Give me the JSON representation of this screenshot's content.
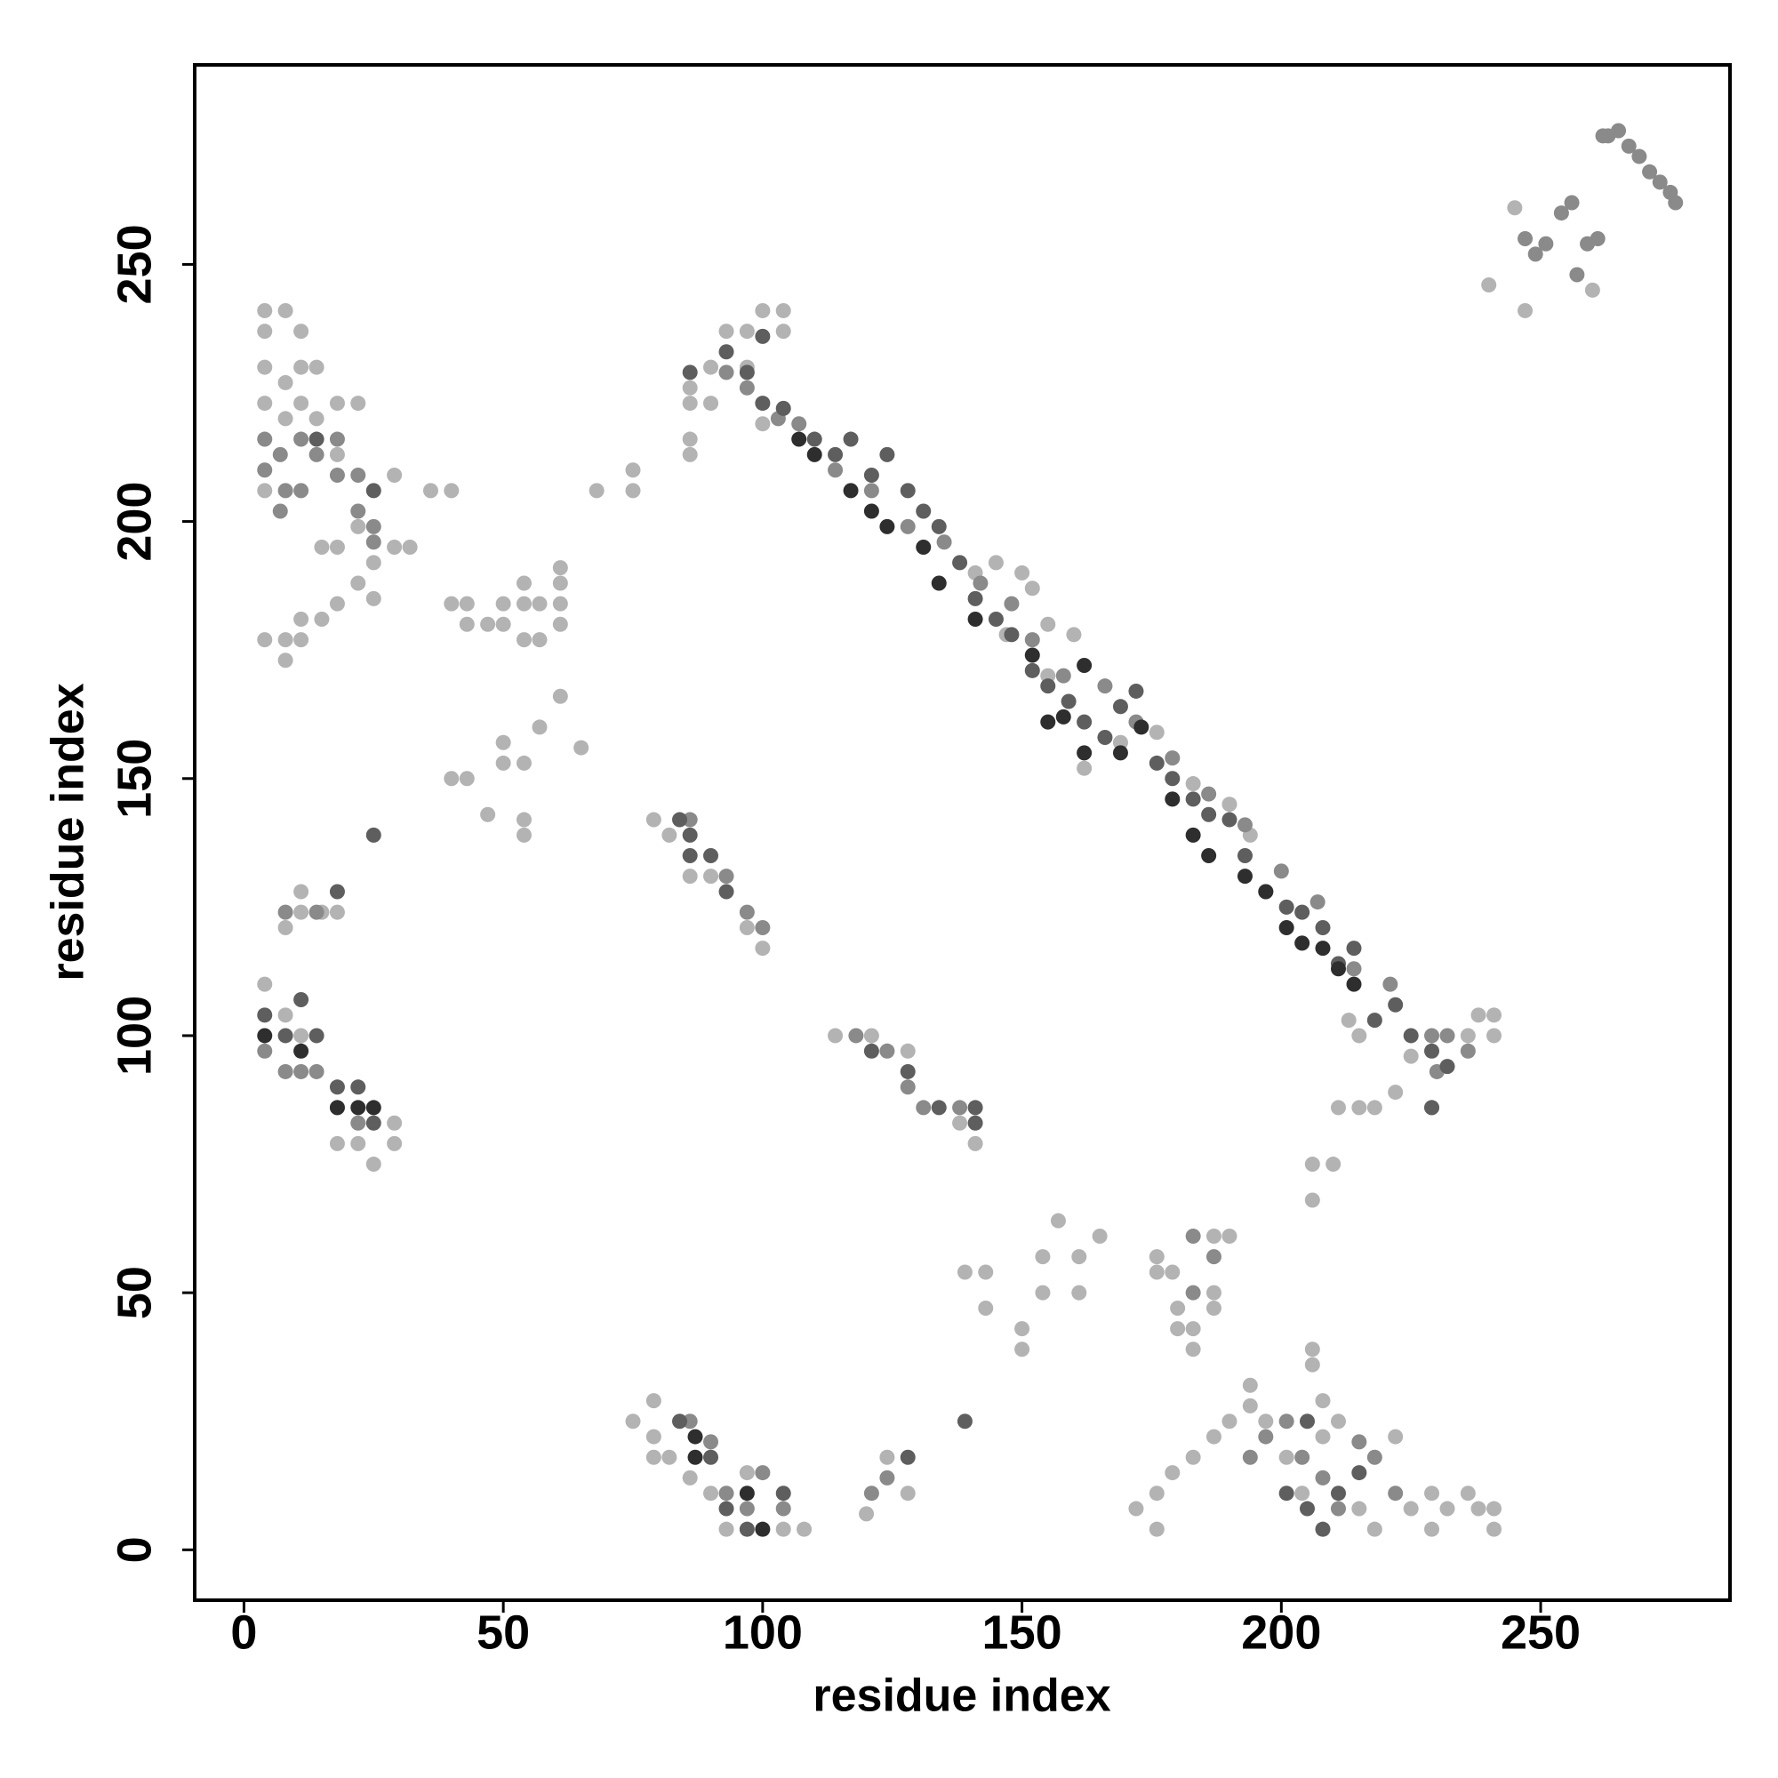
{
  "chart_data": {
    "type": "scatter",
    "xlabel": "residue index",
    "ylabel": "residue index",
    "xlim": [
      -9.5,
      286.5
    ],
    "ylim": [
      -9.8,
      288.8
    ],
    "xticks": [
      0,
      50,
      100,
      150,
      200,
      250
    ],
    "yticks": [
      0,
      50,
      100,
      150,
      200,
      250
    ],
    "grid": false,
    "series": [
      {
        "color": "#b3b3b3",
        "x": [
          4,
          4,
          4,
          4,
          8,
          8,
          11,
          11,
          14,
          4,
          8,
          11,
          14,
          18,
          22,
          18,
          22,
          18,
          22,
          25,
          25,
          29,
          29,
          32,
          15,
          11,
          15,
          18,
          4,
          8,
          8,
          11,
          36,
          40,
          40,
          43,
          43,
          47,
          50,
          50,
          54,
          54,
          54,
          57,
          57,
          61,
          61,
          61,
          61,
          50,
          50,
          54,
          57,
          61,
          65,
          40,
          43,
          47,
          54,
          54,
          68,
          75,
          75,
          86,
          86,
          86,
          86,
          90,
          93,
          97,
          100,
          104,
          104,
          97,
          100,
          90,
          79,
          82,
          86,
          90,
          97,
          100,
          114,
          121,
          128,
          138,
          141,
          150,
          145,
          152,
          160,
          141,
          147,
          155,
          155,
          162,
          169,
          176,
          183,
          190,
          194,
          213,
          215,
          218,
          222,
          225,
          236,
          238,
          241,
          241,
          211,
          215,
          206,
          210,
          206,
          4,
          8,
          11,
          8,
          11,
          11,
          15,
          18,
          18,
          22,
          25,
          29,
          29,
          75,
          79,
          79,
          79,
          82,
          86,
          90,
          93,
          97,
          104,
          108,
          120,
          124,
          128,
          139,
          143,
          143,
          150,
          150,
          154,
          154,
          157,
          161,
          161,
          165,
          176,
          176,
          179,
          180,
          180,
          183,
          183,
          187,
          190,
          187,
          187,
          172,
          176,
          176,
          179,
          183,
          187,
          190,
          194,
          194,
          197,
          201,
          204,
          208,
          208,
          211,
          215,
          218,
          222,
          225,
          229,
          229,
          232,
          236,
          238,
          241,
          241,
          206,
          206,
          240,
          245,
          247,
          260
        ],
        "y": [
          241,
          237,
          230,
          223,
          241,
          227,
          237,
          230,
          230,
          206,
          220,
          223,
          220,
          223,
          223,
          213,
          199,
          195,
          188,
          192,
          185,
          209,
          195,
          195,
          195,
          181,
          181,
          184,
          177,
          173,
          177,
          177,
          206,
          206,
          184,
          184,
          180,
          180,
          184,
          180,
          188,
          184,
          177,
          184,
          177,
          188,
          184,
          180,
          191,
          157,
          153,
          153,
          160,
          166,
          156,
          150,
          150,
          143,
          142,
          139,
          206,
          206,
          210,
          213,
          216,
          223,
          226,
          230,
          237,
          237,
          241,
          241,
          237,
          230,
          219,
          223,
          142,
          139,
          131,
          131,
          121,
          117,
          100,
          100,
          97,
          83,
          79,
          190,
          192,
          187,
          178,
          190,
          178,
          180,
          170,
          152,
          157,
          159,
          149,
          145,
          139,
          103,
          100,
          86,
          89,
          96,
          100,
          104,
          100,
          104,
          86,
          86,
          75,
          75,
          68,
          110,
          104,
          100,
          121,
          124,
          128,
          124,
          124,
          79,
          79,
          75,
          79,
          83,
          25,
          22,
          18,
          29,
          18,
          14,
          11,
          4,
          15,
          4,
          4,
          7,
          18,
          11,
          54,
          54,
          47,
          43,
          39,
          57,
          50,
          64,
          50,
          57,
          61,
          57,
          54,
          54,
          47,
          43,
          43,
          39,
          61,
          61,
          50,
          47,
          8,
          4,
          11,
          15,
          18,
          22,
          25,
          32,
          28,
          25,
          18,
          11,
          22,
          29,
          25,
          8,
          4,
          22,
          8,
          4,
          11,
          8,
          11,
          8,
          4,
          8,
          39,
          36,
          246,
          261,
          241,
          245
        ]
      },
      {
        "color": "#8a8a8a",
        "x": [
          4,
          7,
          11,
          14,
          18,
          22,
          25,
          11,
          4,
          18,
          22,
          8,
          25,
          7,
          93,
          97,
          103,
          107,
          114,
          121,
          128,
          135,
          142,
          148,
          152,
          158,
          166,
          172,
          179,
          186,
          193,
          200,
          207,
          214,
          221,
          229,
          236,
          11,
          14,
          18,
          4,
          8,
          22,
          86,
          93,
          97,
          100,
          118,
          124,
          128,
          131,
          138,
          14,
          8,
          93,
          97,
          100,
          104,
          86,
          90,
          121,
          124,
          183,
          187,
          183,
          194,
          197,
          201,
          204,
          208,
          211,
          215,
          218,
          222,
          229,
          232,
          230,
          247,
          251,
          254,
          256,
          249,
          257,
          259,
          261,
          263,
          265,
          267,
          269,
          271,
          273,
          275,
          276,
          262
        ],
        "y": [
          210,
          213,
          206,
          213,
          209,
          202,
          196,
          216,
          216,
          216,
          209,
          206,
          199,
          202,
          229,
          226,
          220,
          219,
          210,
          206,
          199,
          196,
          188,
          184,
          177,
          170,
          168,
          161,
          154,
          147,
          141,
          132,
          126,
          113,
          110,
          100,
          97,
          93,
          93,
          86,
          97,
          93,
          83,
          142,
          131,
          124,
          121,
          100,
          97,
          90,
          86,
          86,
          124,
          124,
          11,
          8,
          15,
          8,
          25,
          21,
          11,
          14,
          61,
          57,
          50,
          18,
          22,
          25,
          18,
          14,
          8,
          21,
          18,
          11,
          86,
          100,
          93,
          255,
          254,
          260,
          262,
          252,
          248,
          254,
          255,
          275,
          276,
          273,
          271,
          268,
          266,
          264,
          262,
          275
        ]
      },
      {
        "color": "#5e5e5e",
        "x": [
          104,
          110,
          114,
          117,
          121,
          124,
          128,
          131,
          134,
          138,
          141,
          145,
          148,
          152,
          155,
          159,
          162,
          166,
          169,
          172,
          176,
          179,
          183,
          186,
          190,
          193,
          197,
          201,
          204,
          208,
          211,
          214,
          218,
          222,
          225,
          229,
          232,
          229,
          86,
          93,
          97,
          100,
          100,
          84,
          86,
          86,
          90,
          93,
          121,
          128,
          134,
          141,
          141,
          4,
          8,
          11,
          14,
          18,
          22,
          25,
          25,
          18,
          25,
          14,
          84,
          90,
          93,
          97,
          104,
          128,
          139,
          205,
          205,
          208,
          211,
          215,
          201
        ],
        "y": [
          222,
          216,
          213,
          216,
          209,
          213,
          206,
          202,
          199,
          192,
          185,
          181,
          178,
          171,
          168,
          165,
          161,
          158,
          164,
          167,
          153,
          150,
          146,
          143,
          142,
          135,
          128,
          125,
          124,
          121,
          114,
          117,
          103,
          106,
          100,
          97,
          94,
          86,
          229,
          233,
          229,
          236,
          223,
          142,
          139,
          135,
          135,
          128,
          97,
          93,
          86,
          86,
          83,
          104,
          100,
          107,
          100,
          90,
          90,
          83,
          206,
          128,
          139,
          216,
          25,
          18,
          8,
          4,
          11,
          18,
          25,
          25,
          8,
          4,
          11,
          15,
          11
        ]
      },
      {
        "color": "#2e2e2e",
        "x": [
          107,
          110,
          117,
          121,
          124,
          131,
          134,
          141,
          155,
          158,
          162,
          169,
          179,
          183,
          186,
          193,
          197,
          201,
          204,
          208,
          211,
          214,
          87,
          87,
          97,
          100,
          18,
          22,
          25,
          11,
          4,
          162,
          173,
          152
        ],
        "y": [
          216,
          213,
          206,
          202,
          199,
          195,
          188,
          181,
          161,
          162,
          155,
          155,
          146,
          139,
          135,
          131,
          128,
          121,
          118,
          117,
          113,
          110,
          22,
          18,
          11,
          4,
          86,
          86,
          86,
          97,
          100,
          172,
          160,
          174
        ]
      }
    ]
  }
}
